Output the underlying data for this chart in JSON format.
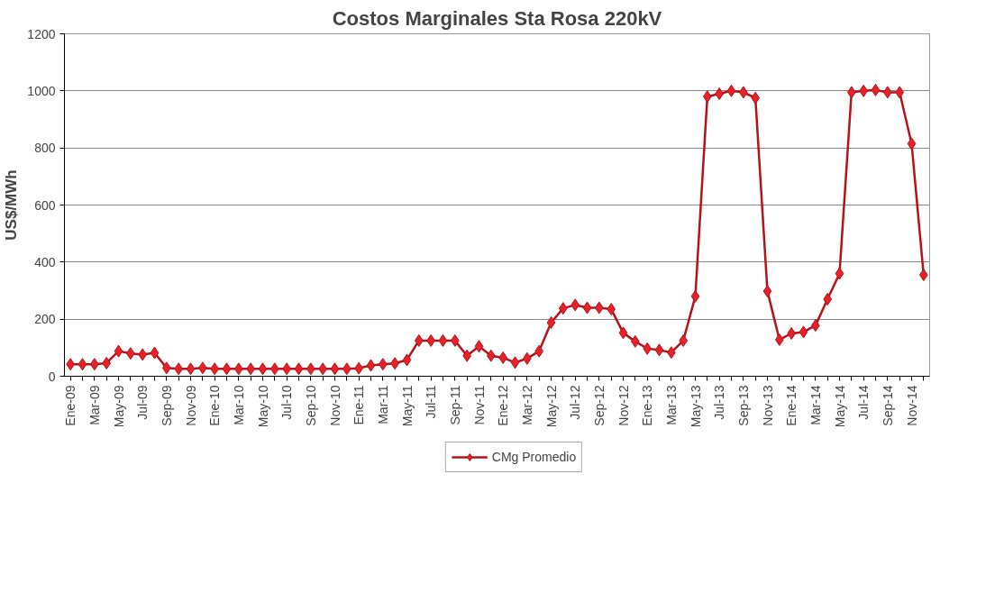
{
  "chart_data": {
    "type": "line",
    "title": "Costos Marginales Sta Rosa 220kV",
    "ylabel": "US$/MWh",
    "categories": [
      "Ene-09",
      null,
      "Mar-09",
      null,
      "May-09",
      null,
      "Jul-09",
      null,
      "Sep-09",
      null,
      "Nov-09",
      null,
      "Ene-10",
      null,
      "Mar-10",
      null,
      "May-10",
      null,
      "Jul-10",
      null,
      "Sep-10",
      null,
      "Nov-10",
      null,
      "Ene-11",
      null,
      "Mar-11",
      null,
      "May-11",
      null,
      "Jul-11",
      null,
      "Sep-11",
      null,
      "Nov-11",
      null,
      "Ene-12",
      null,
      "Mar-12",
      null,
      "May-12",
      null,
      "Jul-12",
      null,
      "Sep-12",
      null,
      "Nov-12",
      null,
      "Ene-13",
      null,
      "Mar-13",
      null,
      "May-13",
      null,
      "Jul-13",
      null,
      "Sep-13",
      null,
      "Nov-13",
      null,
      "Ene-14",
      null,
      "Mar-14",
      null,
      "May-14",
      null,
      "Jul-14",
      null,
      "Sep-14",
      null,
      "Nov-14",
      null
    ],
    "series": [
      {
        "name": "CMg Promedio",
        "color": "#b5121b",
        "values": [
          42,
          42,
          42,
          46,
          88,
          80,
          76,
          82,
          29,
          26,
          26,
          29,
          26,
          26,
          26,
          26,
          26,
          26,
          26,
          26,
          26,
          26,
          26,
          26,
          28,
          38,
          42,
          45,
          57,
          125,
          125,
          125,
          125,
          72,
          105,
          72,
          65,
          48,
          62,
          88,
          188,
          238,
          250,
          240,
          240,
          235,
          152,
          122,
          97,
          92,
          83,
          125,
          280,
          980,
          990,
          1000,
          995,
          975,
          298,
          128,
          150,
          155,
          178,
          270,
          360,
          995,
          1000,
          1003,
          995,
          995,
          815,
          355
        ]
      }
    ],
    "ylim": [
      0,
      1200
    ],
    "yticks": [
      0,
      200,
      400,
      600,
      800,
      1000,
      1200
    ],
    "grid": "y",
    "legend": "bottom",
    "marker": "diamond",
    "line_style": "solid"
  }
}
